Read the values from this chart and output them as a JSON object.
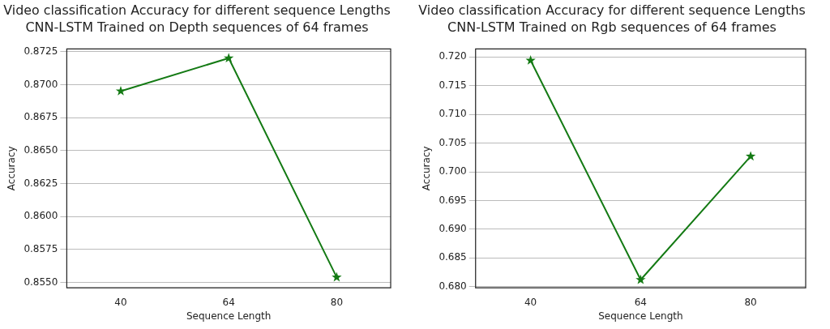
{
  "chart_data": [
    {
      "type": "line",
      "title": "Video classification Accuracy for different sequence Lengths",
      "subtitle": "CNN-LSTM Trained on Depth sequences of 64 frames",
      "xlabel": "Sequence Length",
      "ylabel": "Accuracy",
      "categories": [
        "40",
        "64",
        "80"
      ],
      "series": [
        {
          "color": "#147a14",
          "values": [
            0.8695,
            0.872,
            0.8554
          ]
        }
      ],
      "ylim": [
        0.8546,
        0.8727
      ],
      "yticks": [
        {
          "value": 0.855,
          "label": "0.8550"
        },
        {
          "value": 0.8575,
          "label": "0.8575"
        },
        {
          "value": 0.86,
          "label": "0.8600"
        },
        {
          "value": 0.8625,
          "label": "0.8625"
        },
        {
          "value": 0.865,
          "label": "0.8650"
        },
        {
          "value": 0.8675,
          "label": "0.8675"
        },
        {
          "value": 0.87,
          "label": "0.8700"
        },
        {
          "value": 0.8725,
          "label": "0.8725"
        }
      ],
      "grid": "y",
      "marker": "star",
      "line_style": "solid"
    },
    {
      "type": "line",
      "title": "Video classification Accuracy for different sequence Lengths",
      "subtitle": "CNN-LSTM Trained on Rgb sequences of 64 frames",
      "xlabel": "Sequence Length",
      "ylabel": "Accuracy",
      "categories": [
        "40",
        "64",
        "80"
      ],
      "series": [
        {
          "color": "#147a14",
          "values": [
            0.7194,
            0.6812,
            0.7027
          ]
        }
      ],
      "ylim": [
        0.6798,
        0.7214
      ],
      "yticks": [
        {
          "value": 0.68,
          "label": "0.680"
        },
        {
          "value": 0.685,
          "label": "0.685"
        },
        {
          "value": 0.69,
          "label": "0.690"
        },
        {
          "value": 0.695,
          "label": "0.695"
        },
        {
          "value": 0.7,
          "label": "0.700"
        },
        {
          "value": 0.705,
          "label": "0.705"
        },
        {
          "value": 0.71,
          "label": "0.710"
        },
        {
          "value": 0.715,
          "label": "0.715"
        },
        {
          "value": 0.72,
          "label": "0.720"
        }
      ],
      "grid": "y",
      "marker": "star",
      "line_style": "solid"
    }
  ]
}
